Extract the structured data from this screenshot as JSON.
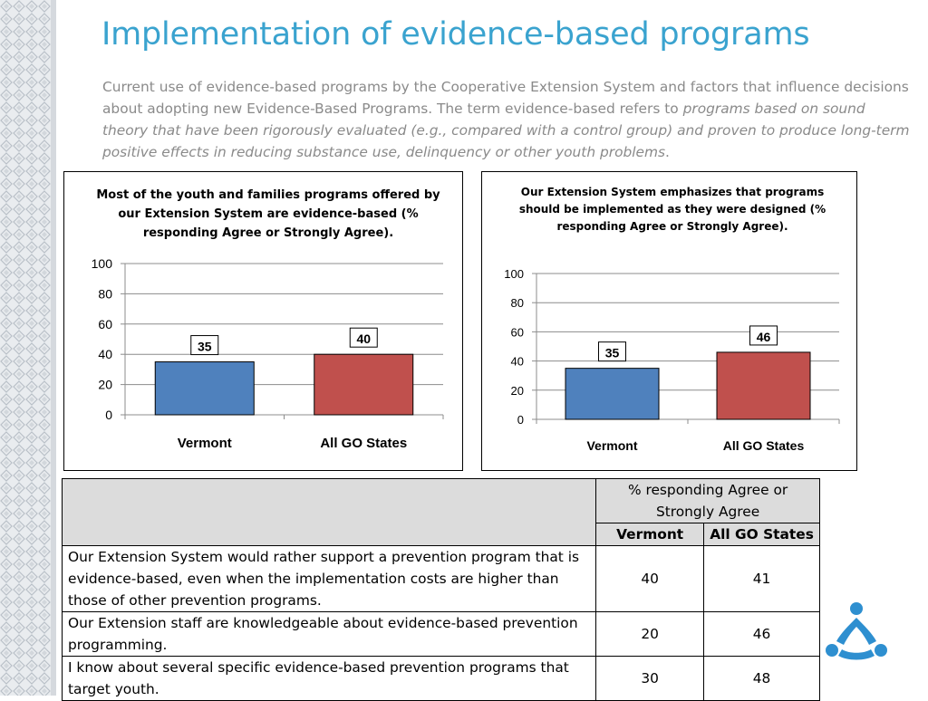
{
  "slide": {
    "title": "Implementation of evidence-based programs",
    "body_plain": "Current use of evidence-based programs by the Cooperative Extension System and factors that influence decisions about adopting new Evidence-Based Programs. The term evidence-based refers to ",
    "body_emphasis": "programs based on sound theory that have been rigorously evaluated (e.g., compared with a control group) and proven to produce long-term positive effects in reducing substance use, delinquency or other youth problems",
    "body_end": "."
  },
  "theme": {
    "title_color": "#3aa3cf",
    "vermont_color": "#4f81bd",
    "go_states_color": "#c0504d",
    "logo_color": "#2e8fd0"
  },
  "chart_data": [
    {
      "type": "bar",
      "title": "Most of the youth and families programs offered by our Extension System are evidence-based (% responding Agree or Strongly Agree).",
      "categories": [
        "Vermont",
        "All GO States"
      ],
      "values": [
        35,
        40
      ],
      "ylim": [
        0,
        100
      ],
      "yticks": [
        0,
        20,
        40,
        60,
        80,
        100
      ],
      "grid": true,
      "data_labels": true
    },
    {
      "type": "bar",
      "title": "Our Extension System emphasizes that programs should be implemented as they were designed (% responding Agree or Strongly Agree).",
      "categories": [
        "Vermont",
        "All GO States"
      ],
      "values": [
        35,
        46
      ],
      "ylim": [
        0,
        100
      ],
      "yticks": [
        0,
        20,
        40,
        60,
        80,
        100
      ],
      "grid": true,
      "data_labels": true
    }
  ],
  "table": {
    "group_header": "% responding Agree or Strongly Agree",
    "columns": [
      "Vermont",
      "All GO States"
    ],
    "rows": [
      {
        "statement": "Our Extension System would rather support a prevention program that is evidence-based, even when the implementation costs are higher than those of other prevention programs.",
        "vermont": "40",
        "go_states": "41"
      },
      {
        "statement": "Our Extension staff are knowledgeable about evidence-based prevention programming.",
        "vermont": "20",
        "go_states": "46"
      },
      {
        "statement": "I know about several specific evidence-based prevention programs that target youth.",
        "vermont": "30",
        "go_states": "48"
      }
    ]
  },
  "logo": {
    "icon": "three-people-circle-logo-icon"
  }
}
